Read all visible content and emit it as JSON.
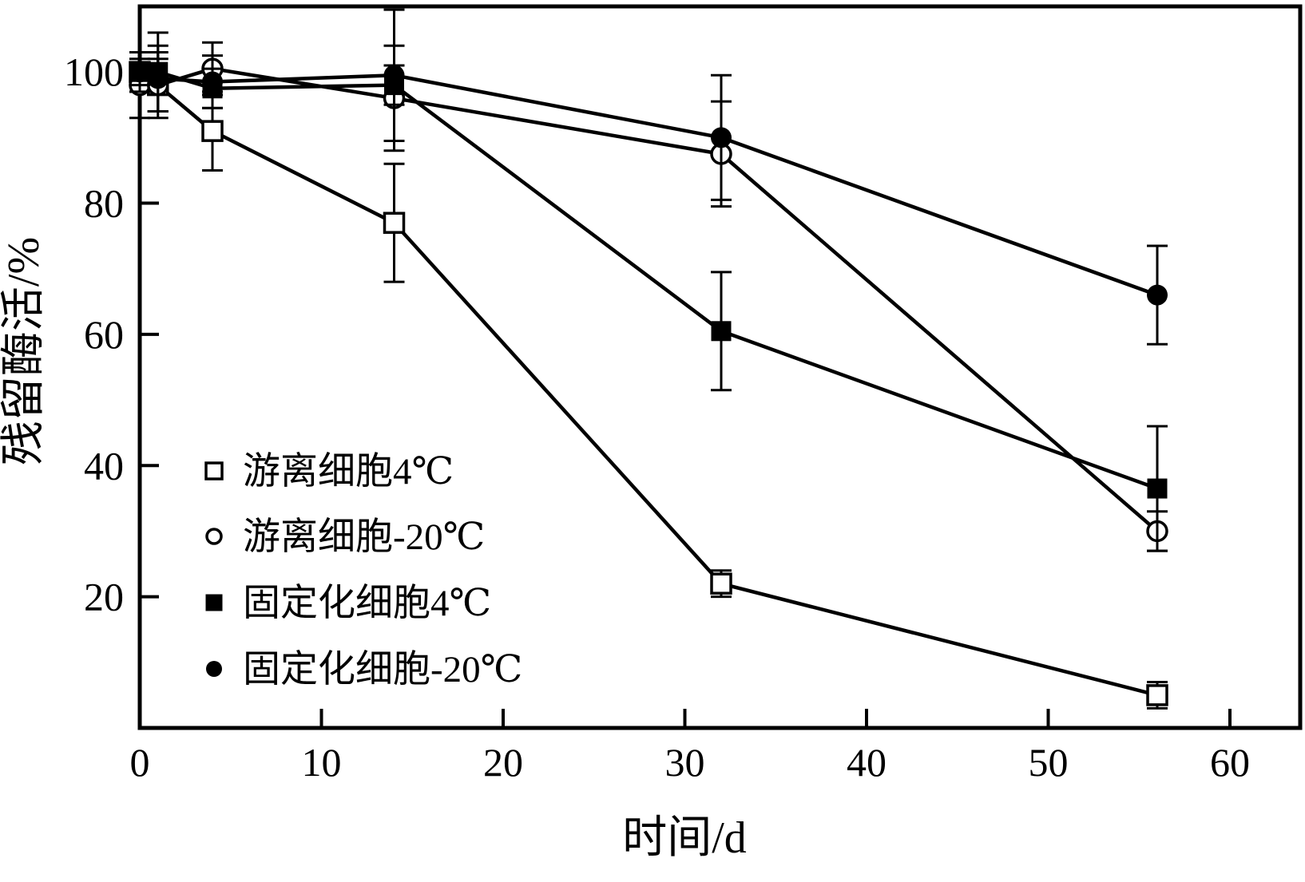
{
  "chart_data": {
    "type": "line",
    "title": "",
    "xlabel": "时间/d",
    "ylabel": "残留酶活/%",
    "xlim": [
      0,
      60
    ],
    "ylim": [
      0,
      110
    ],
    "x_ticks": [
      0,
      10,
      20,
      30,
      40,
      50,
      60
    ],
    "y_ticks": [
      20,
      40,
      60,
      80,
      100
    ],
    "grid": false,
    "legend_position": "inside-lower-left",
    "background": "#ffffff",
    "axis_color": "#000000",
    "x": [
      0,
      1,
      4,
      14,
      32,
      56
    ],
    "series": [
      {
        "name": "游离细胞4℃",
        "marker": "open-square",
        "values": [
          100,
          98,
          91,
          77,
          22,
          5
        ],
        "errors": [
          3,
          5,
          6,
          9,
          2,
          2
        ]
      },
      {
        "name": "游离细胞-20℃",
        "marker": "open-circle",
        "values": [
          98,
          98,
          100.5,
          96,
          87.5,
          30
        ],
        "errors": [
          5,
          4,
          4,
          8,
          8,
          3
        ]
      },
      {
        "name": "固定化细胞4℃",
        "marker": "filled-square",
        "values": [
          100,
          100,
          97.5,
          98,
          60.5,
          36.5
        ],
        "errors": [
          2,
          6,
          3,
          3,
          9,
          9.5
        ]
      },
      {
        "name": "固定化细胞-20℃",
        "marker": "filled-circle",
        "values": [
          100,
          99,
          98.5,
          99.5,
          90,
          66
        ],
        "errors": [
          3,
          5,
          4,
          10,
          9.5,
          7.5
        ]
      }
    ]
  }
}
